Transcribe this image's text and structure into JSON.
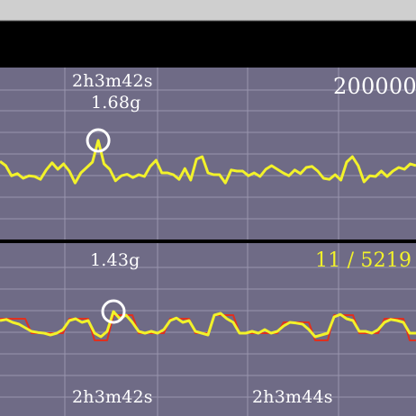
{
  "colors": {
    "panel_bg": "#6f6b86",
    "grid": "#9a96ae",
    "divider": "#000000",
    "trace_yellow": "#f2f22a",
    "trace_red": "#e0301e",
    "marker": "#ffffff",
    "counter_text": "#f2f22a"
  },
  "labels": {
    "top_time": "2h3m42s",
    "top_value": "1.68g",
    "top_right": "200000",
    "bottom_value": "1.43g",
    "counter": "11 / 5219",
    "bottom_time_1": "2h3m42s",
    "bottom_time_2": "2h3m44s"
  },
  "chart_data": [
    {
      "type": "line",
      "series": [
        {
          "color": "#f2f22a",
          "values": [
            0.42,
            0.3,
            0.02,
            0.08,
            -0.05,
            0.02,
            0.0,
            -0.08,
            0.18,
            0.38,
            0.2,
            0.35,
            0.15,
            -0.18,
            0.1,
            0.25,
            0.4,
            1.0,
            0.35,
            0.2,
            -0.12,
            0.02,
            0.06,
            -0.03,
            0.05,
            0.0,
            0.28,
            0.45,
            0.1,
            0.1,
            0.05,
            -0.08,
            0.22,
            -0.1,
            0.48,
            0.55,
            0.1,
            0.05,
            0.05,
            -0.18,
            0.18,
            0.15,
            0.15,
            0.02,
            0.1,
            0.0,
            0.2,
            0.3,
            0.2,
            0.1,
            0.02,
            0.18,
            0.08,
            0.25,
            0.28,
            0.15,
            -0.05,
            -0.08,
            0.05,
            -0.1,
            0.4,
            0.55,
            0.3,
            -0.15,
            0.02,
            0.0,
            0.15,
            0.0,
            0.15,
            0.25,
            0.2,
            0.35,
            0.3
          ]
        }
      ],
      "marker_index": 17,
      "marker_label": "1.68g",
      "grid": true
    },
    {
      "type": "line",
      "series": [
        {
          "color": "#e0301e",
          "values": [
            0.4,
            0.4,
            0.4,
            0.4,
            0.4,
            0.0,
            0.0,
            0.0,
            0.0,
            0.0,
            0.0,
            0.4,
            0.4,
            0.4,
            0.4,
            -0.2,
            -0.2,
            -0.2,
            0.5,
            0.5,
            0.5,
            0.5,
            0.0,
            0.0,
            0.0,
            0.0,
            0.0,
            0.4,
            0.4,
            0.4,
            0.4,
            0.0,
            0.0,
            0.0,
            0.5,
            0.5,
            0.5,
            0.5,
            0.0,
            0.0,
            0.0,
            0.0,
            0.0,
            0.0,
            0.0,
            0.3,
            0.3,
            0.3,
            0.3,
            0.3,
            -0.2,
            -0.2,
            -0.2,
            0.5,
            0.5,
            0.5,
            0.5,
            0.0,
            0.0,
            0.0,
            0.0,
            0.4,
            0.4,
            0.4,
            0.4,
            -0.2,
            -0.2
          ]
        },
        {
          "color": "#f2f22a",
          "values": [
            0.35,
            0.38,
            0.3,
            0.25,
            0.15,
            0.05,
            0.02,
            0.0,
            -0.05,
            0.0,
            0.1,
            0.35,
            0.4,
            0.3,
            0.35,
            0.0,
            -0.1,
            0.05,
            0.6,
            0.4,
            0.5,
            0.3,
            0.05,
            0.0,
            0.05,
            0.0,
            0.1,
            0.35,
            0.42,
            0.3,
            0.35,
            0.05,
            0.0,
            -0.05,
            0.5,
            0.55,
            0.4,
            0.3,
            0.0,
            0.0,
            0.05,
            0.0,
            0.1,
            0.0,
            0.05,
            0.2,
            0.3,
            0.28,
            0.25,
            0.1,
            -0.1,
            -0.05,
            0.0,
            0.45,
            0.52,
            0.4,
            0.35,
            0.05,
            0.05,
            0.0,
            0.1,
            0.3,
            0.38,
            0.35,
            0.3,
            0.0,
            0.0
          ]
        }
      ],
      "marker_index": 18,
      "marker_label": "1.43g",
      "grid": true
    }
  ]
}
